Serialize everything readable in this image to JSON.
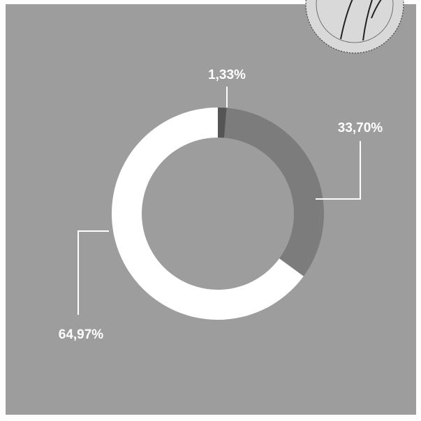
{
  "colors": {
    "panel_background": "#9d9d9d",
    "leader_line": "#ffffff",
    "label_text": "#ffffff"
  },
  "chart_data": {
    "type": "pie",
    "style": "donut",
    "start": "top, clockwise",
    "legend": "none",
    "slices": [
      {
        "value": 1.33,
        "label": "1,33%",
        "color": "#555555"
      },
      {
        "value": 33.7,
        "label": "33,70%",
        "color": "#7c7c7c"
      },
      {
        "value": 64.97,
        "label": "64,97%",
        "color": "#ffffff"
      }
    ]
  }
}
